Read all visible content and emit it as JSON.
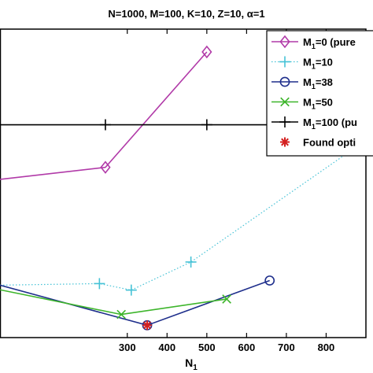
{
  "chart_data": {
    "type": "line",
    "title": "N=1000, M=100, K=10, Z=10, α=1",
    "xlabel": "N",
    "xlabel_sub": "1",
    "ylabel": "",
    "xlim": [
      -20,
      900
    ],
    "ylim": [
      0,
      100
    ],
    "xticks": [
      300,
      400,
      500,
      600,
      700,
      800
    ],
    "grid": false,
    "legend_position": "top-right",
    "series": [
      {
        "name_main": "M",
        "name_sub": "1",
        "name_rest": "=0 (pure",
        "color": "#b13aa8",
        "linestyle": "solid",
        "marker": "diamond",
        "x": [
          -20,
          245,
          500
        ],
        "y": [
          51.3,
          55.2,
          92.6
        ]
      },
      {
        "name_main": "M",
        "name_sub": "1",
        "name_rest": "=10",
        "color": "#45c2d6",
        "linestyle": "dotted",
        "marker": "plus",
        "x": [
          -20,
          230,
          310,
          460,
          900
        ],
        "y": [
          17,
          17.5,
          15.4,
          24.5,
          64
        ]
      },
      {
        "name_main": "M",
        "name_sub": "1",
        "name_rest": "=38",
        "color": "#1f2f8c",
        "linestyle": "solid",
        "marker": "circle",
        "x": [
          -20,
          350,
          658
        ],
        "y": [
          17,
          4,
          18.5
        ]
      },
      {
        "name_main": "M",
        "name_sub": "1",
        "name_rest": "=50",
        "color": "#3db52b",
        "linestyle": "solid",
        "marker": "x",
        "x": [
          -20,
          285,
          550
        ],
        "y": [
          15.5,
          7.5,
          12.5
        ]
      },
      {
        "name_main": "M",
        "name_sub": "1",
        "name_rest": "=100 (pu",
        "color": "#000000",
        "linestyle": "solid",
        "marker": "plus",
        "x": [
          -20,
          245,
          500,
          900
        ],
        "y": [
          69,
          69,
          69,
          69
        ]
      },
      {
        "name_main": "",
        "name_sub": "",
        "name_rest": "Found opti",
        "color": "#d42020",
        "linestyle": "none",
        "marker": "asterisk",
        "x": [
          350
        ],
        "y": [
          4
        ]
      }
    ]
  }
}
